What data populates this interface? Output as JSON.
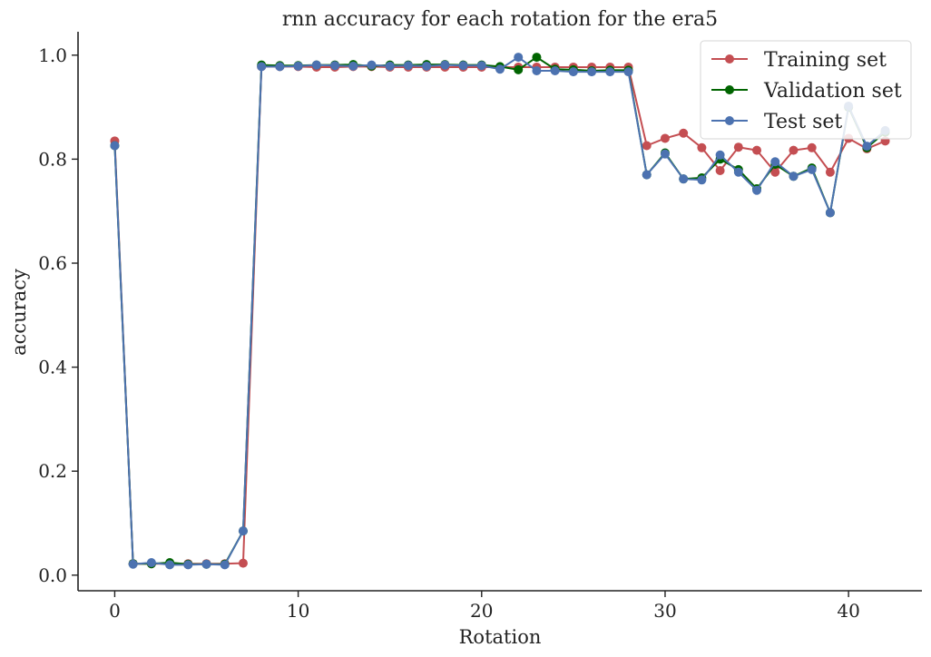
{
  "chart_data": {
    "type": "line",
    "title": "rnn accuracy for each rotation for the era5",
    "xlabel": "Rotation",
    "ylabel": "accuracy",
    "xlim": [
      -2,
      44
    ],
    "ylim": [
      -0.03,
      1.045
    ],
    "xticks": [
      0,
      10,
      20,
      30,
      40
    ],
    "yticks": [
      0.0,
      0.2,
      0.4,
      0.6,
      0.8,
      1.0
    ],
    "grid": false,
    "legend_position": "top-right",
    "x": [
      0,
      1,
      2,
      3,
      4,
      5,
      6,
      7,
      8,
      9,
      10,
      11,
      12,
      13,
      14,
      15,
      16,
      17,
      18,
      19,
      20,
      21,
      22,
      23,
      24,
      25,
      26,
      27,
      28,
      29,
      30,
      31,
      32,
      33,
      34,
      35,
      36,
      37,
      38,
      39,
      40,
      41,
      42
    ],
    "series": [
      {
        "name": "Training set",
        "color": "#c44e52",
        "values": [
          0.835,
          0.022,
          0.022,
          0.022,
          0.022,
          0.022,
          0.022,
          0.023,
          0.978,
          0.978,
          0.978,
          0.977,
          0.977,
          0.978,
          0.978,
          0.977,
          0.977,
          0.977,
          0.977,
          0.977,
          0.977,
          0.977,
          0.977,
          0.977,
          0.977,
          0.977,
          0.977,
          0.977,
          0.977,
          0.826,
          0.84,
          0.85,
          0.822,
          0.778,
          0.823,
          0.817,
          0.775,
          0.817,
          0.822,
          0.775,
          0.84,
          0.82,
          0.835
        ]
      },
      {
        "name": "Validation set",
        "color": "#006400",
        "values": [
          0.826,
          0.022,
          0.022,
          0.024,
          0.021,
          0.021,
          0.021,
          0.085,
          0.981,
          0.98,
          0.98,
          0.981,
          0.981,
          0.982,
          0.979,
          0.981,
          0.981,
          0.982,
          0.982,
          0.981,
          0.981,
          0.978,
          0.972,
          0.996,
          0.973,
          0.972,
          0.97,
          0.971,
          0.971,
          0.77,
          0.812,
          0.762,
          0.764,
          0.8,
          0.78,
          0.743,
          0.79,
          0.767,
          0.783,
          0.697,
          0.9,
          0.822,
          0.852
        ]
      },
      {
        "name": "Test set",
        "color": "#4c72b0",
        "values": [
          0.826,
          0.021,
          0.024,
          0.02,
          0.02,
          0.021,
          0.02,
          0.085,
          0.978,
          0.978,
          0.979,
          0.981,
          0.98,
          0.979,
          0.981,
          0.979,
          0.98,
          0.979,
          0.981,
          0.98,
          0.98,
          0.973,
          0.996,
          0.97,
          0.97,
          0.968,
          0.968,
          0.968,
          0.968,
          0.77,
          0.81,
          0.762,
          0.76,
          0.808,
          0.775,
          0.74,
          0.795,
          0.767,
          0.78,
          0.697,
          0.902,
          0.825,
          0.855
        ]
      }
    ]
  }
}
